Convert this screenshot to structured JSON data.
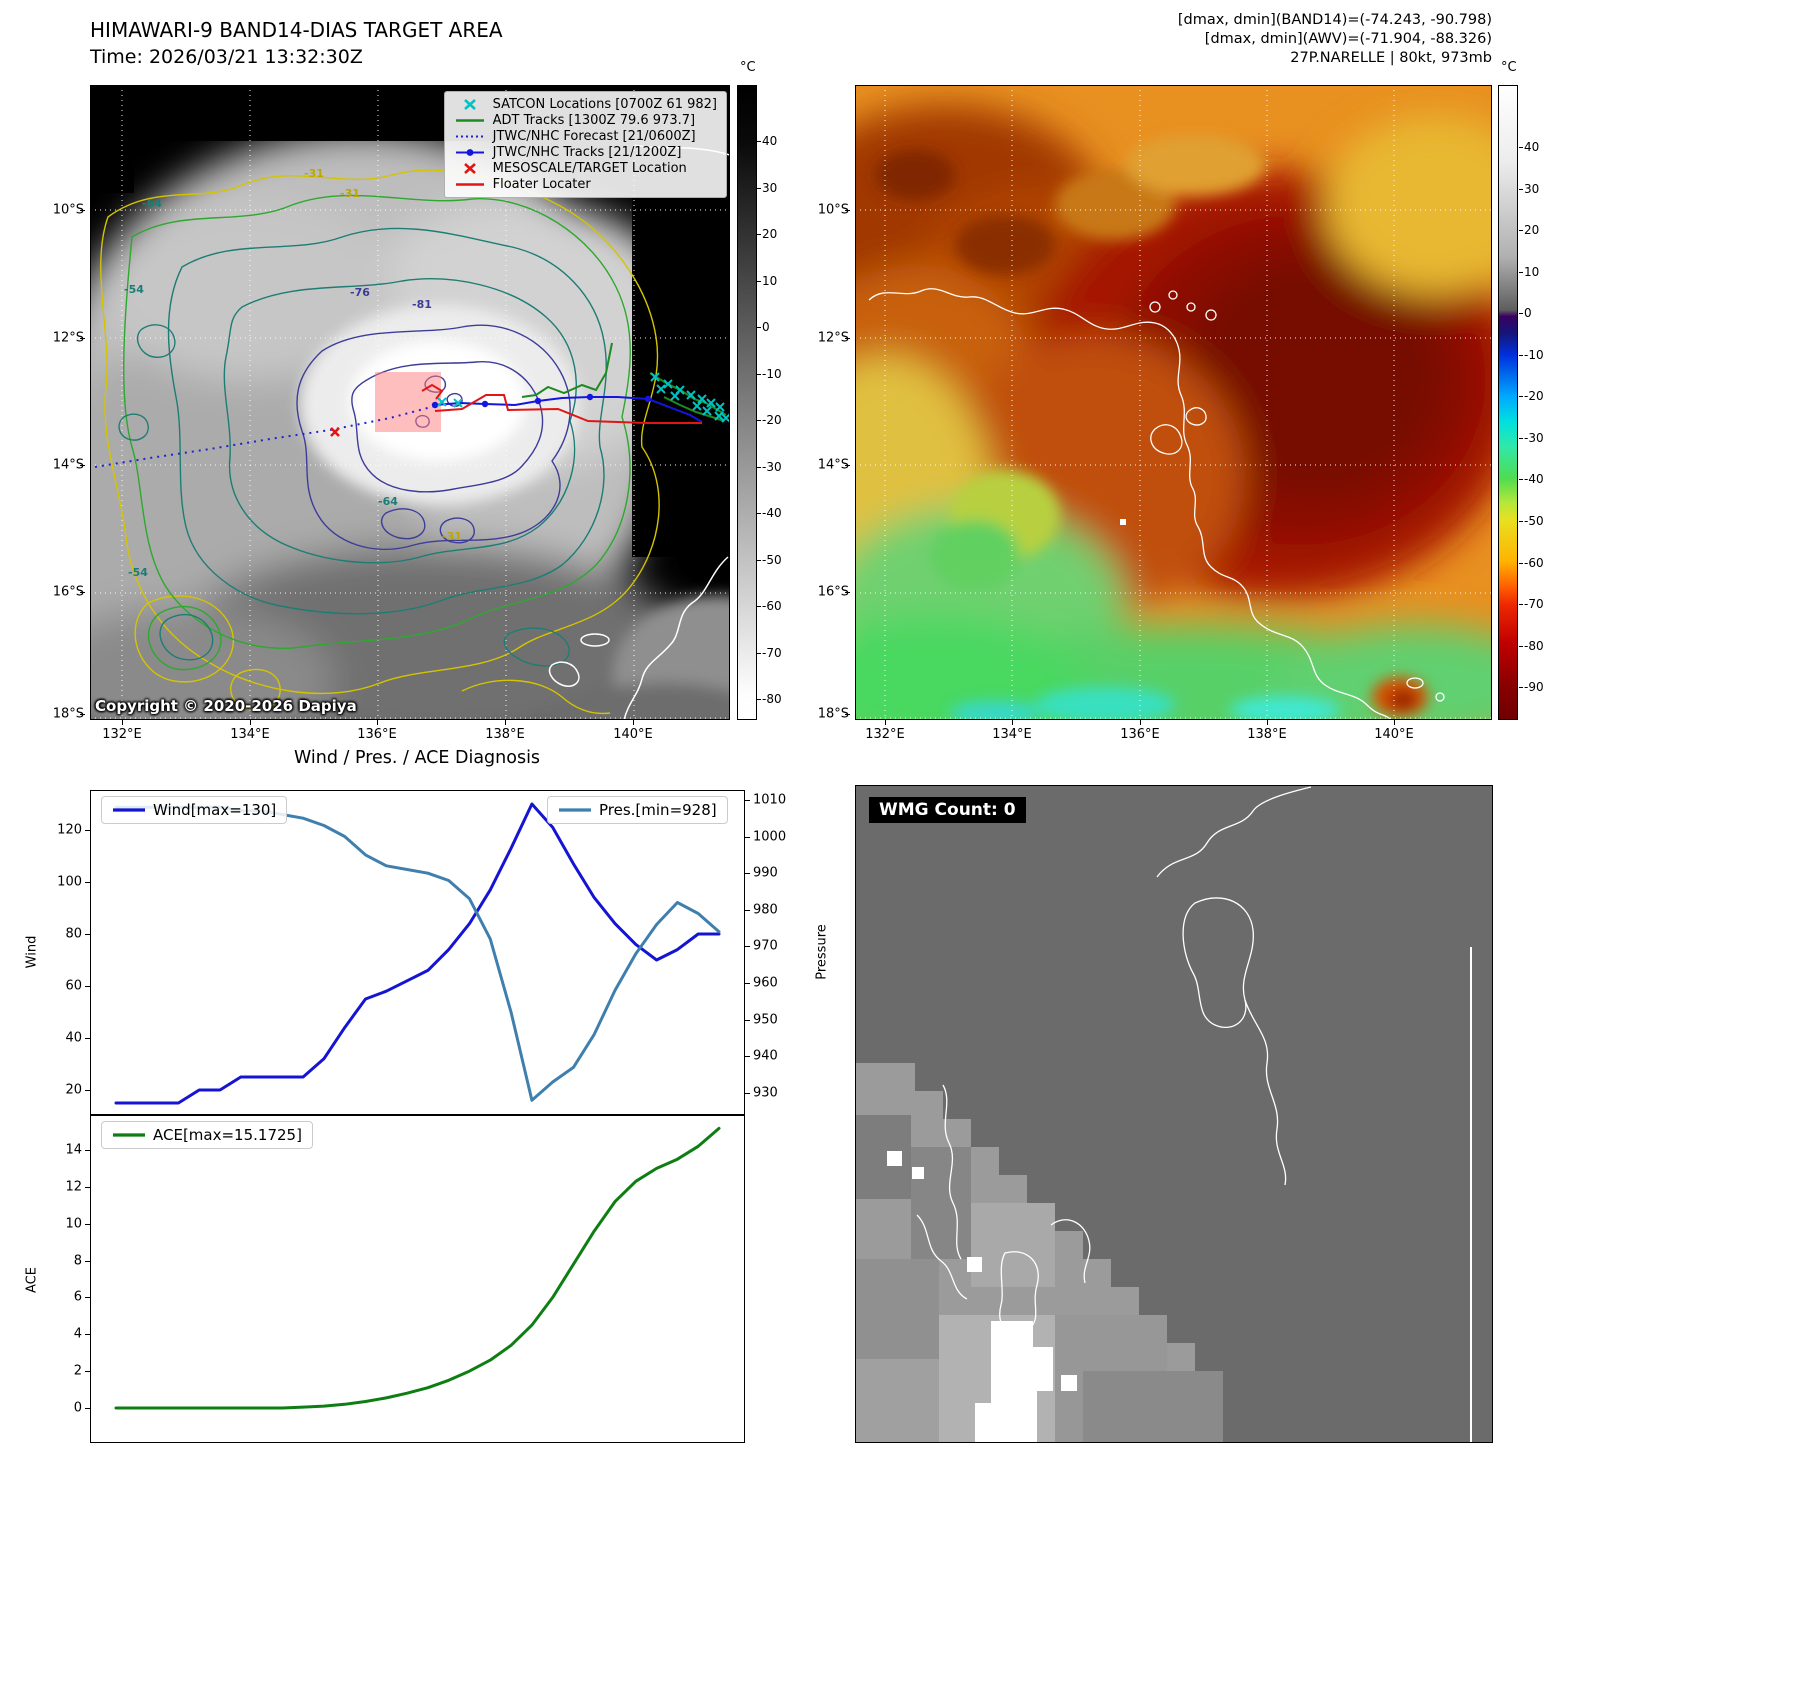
{
  "band14": {
    "title": "HIMAWARI-9 BAND14-DIAS TARGET AREA",
    "time": "Time: 2026/03/21 13:32:30Z",
    "copyright": "Copyright © 2020-2026 Dapiya",
    "colorbar_unit": "°C",
    "colorbar_ticks": [
      "40",
      "30",
      "20",
      "10",
      "0",
      "-10",
      "-20",
      "-30",
      "-40",
      "-50",
      "-60",
      "-70",
      "-80"
    ],
    "x_ticks": [
      "132°E",
      "134°E",
      "136°E",
      "138°E",
      "140°E"
    ],
    "y_ticks": [
      "10°S",
      "12°S",
      "14°S",
      "16°S",
      "18°S"
    ],
    "legend": [
      {
        "label": "SATCON Locations [0700Z 61 982]",
        "type": "x-marker",
        "color": "#00c2c2"
      },
      {
        "label": "ADT Tracks [1300Z 79.6 973.7]",
        "type": "line",
        "color": "#1e8a22"
      },
      {
        "label": "JTWC/NHC Forecast [21/0600Z]",
        "type": "dotted-line",
        "color": "#2222cc"
      },
      {
        "label": "JTWC/NHC Tracks [21/1200Z]",
        "type": "line-marker",
        "color": "#1515e0"
      },
      {
        "label": "MESOSCALE/TARGET Location",
        "type": "x-marker",
        "color": "#e01515"
      },
      {
        "label": "Floater Locater",
        "type": "line",
        "color": "#e01515"
      }
    ],
    "contour_labels": [
      {
        "text": "-64",
        "color": "#1d7d74"
      },
      {
        "text": "-31",
        "color": "#b8a800"
      },
      {
        "text": "-31",
        "color": "#b8a800"
      },
      {
        "text": "-54",
        "color": "#1d7d74"
      },
      {
        "text": "-76",
        "color": "#3d3d99"
      },
      {
        "text": "-81",
        "color": "#3d3d99"
      },
      {
        "text": "-64",
        "color": "#1d7d74"
      },
      {
        "text": "-31",
        "color": "#b8a800"
      },
      {
        "text": "-54",
        "color": "#1d7d74"
      }
    ]
  },
  "awv": {
    "header_lines": [
      "[dmax, dmin](BAND14)=(-74.243, -90.798)",
      "[dmax, dmin](AWV)=(-71.904, -88.326)",
      "27P.NARELLE | 80kt, 973mb"
    ],
    "colorbar_unit": "°C",
    "colorbar_ticks": [
      "40",
      "30",
      "20",
      "10",
      "0",
      "-10",
      "-20",
      "-30",
      "-40",
      "-50",
      "-60",
      "-70",
      "-80",
      "-90"
    ],
    "x_ticks": [
      "132°E",
      "134°E",
      "136°E",
      "138°E",
      "140°E"
    ],
    "y_ticks": [
      "10°S",
      "12°S",
      "14°S",
      "16°S",
      "18°S"
    ]
  },
  "diagnosis": {
    "title": "Wind / Pres. / ACE Diagnosis"
  },
  "wmg": {
    "count_label": "WMG Count: 0"
  },
  "chart_data": [
    {
      "type": "line",
      "title": "Wind / Pres. / ACE Diagnosis",
      "x_axis": "unlabeled time steps",
      "series": [
        {
          "name": "Wind[max=130]",
          "axis": "left",
          "color": "#1414d2",
          "values": [
            15,
            15,
            15,
            15,
            20,
            20,
            25,
            25,
            25,
            25,
            32,
            44,
            55,
            58,
            62,
            66,
            74,
            84,
            97,
            113,
            130,
            121,
            107,
            94,
            84,
            76,
            70,
            74,
            80,
            80
          ]
        },
        {
          "name": "Pres.[min=928]",
          "axis": "right",
          "color": "#3f7fae",
          "values": [
            1008,
            1008,
            1008,
            1008,
            1008,
            1008,
            1007,
            1007,
            1006,
            1005,
            1003,
            1000,
            995,
            992,
            991,
            990,
            988,
            983,
            972,
            952,
            928,
            933,
            937,
            946,
            958,
            968,
            976,
            982,
            979,
            974
          ]
        }
      ],
      "left_axis": {
        "label": "Wind",
        "ticks": [
          120,
          100,
          80,
          60,
          40,
          20
        ],
        "range": [
          10.4,
          135.4
        ]
      },
      "right_axis": {
        "label": "Pressure",
        "ticks": [
          1010,
          1000,
          990,
          980,
          970,
          960,
          950,
          940,
          930
        ],
        "range": [
          924,
          1012.7
        ]
      }
    },
    {
      "type": "line",
      "x_axis": "unlabeled time steps",
      "series": [
        {
          "name": "ACE[max=15.1725]",
          "axis": "left",
          "color": "#0e7d12",
          "values": [
            0,
            0,
            0,
            0,
            0,
            0,
            0,
            0,
            0,
            0.05,
            0.1,
            0.2,
            0.35,
            0.55,
            0.8,
            1.1,
            1.5,
            2.0,
            2.6,
            3.4,
            4.5,
            6.0,
            7.8,
            9.6,
            11.2,
            12.3,
            13.0,
            13.5,
            14.2,
            15.1725
          ]
        }
      ],
      "left_axis": {
        "label": "ACE",
        "ticks": [
          14,
          12,
          10,
          8,
          6,
          4,
          2,
          0
        ],
        "range": [
          -1.9,
          15.9
        ]
      }
    }
  ]
}
